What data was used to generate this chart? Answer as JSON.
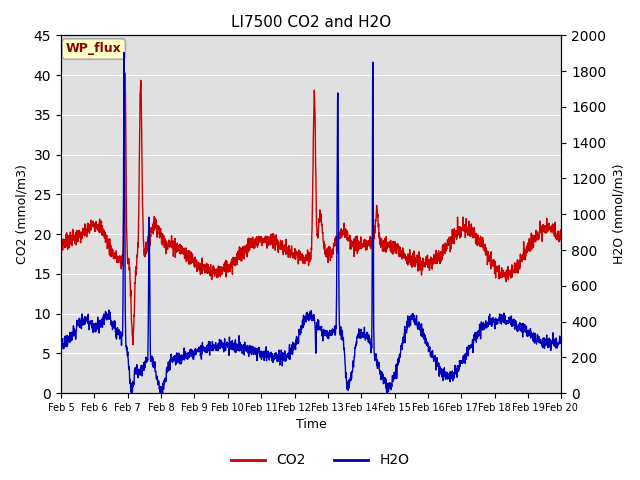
{
  "title": "LI7500 CO2 and H2O",
  "xlabel": "Time",
  "ylabel_left": "CO2 (mmol/m3)",
  "ylabel_right": "H2O (mmol/m3)",
  "ylim_left": [
    0,
    45
  ],
  "ylim_right": [
    0,
    2000
  ],
  "yticks_left": [
    0,
    5,
    10,
    15,
    20,
    25,
    30,
    35,
    40,
    45
  ],
  "yticks_right": [
    0,
    200,
    400,
    600,
    800,
    1000,
    1200,
    1400,
    1600,
    1800,
    2000
  ],
  "xtick_labels": [
    "Feb 5",
    "Feb 6",
    "Feb 7",
    "Feb 8",
    "Feb 9",
    "Feb 10",
    "Feb 11",
    "Feb 12",
    "Feb 13",
    "Feb 14",
    "Feb 15",
    "Feb 16",
    "Feb 17",
    "Feb 18",
    "Feb 19",
    "Feb 20"
  ],
  "co2_color": "#cc0000",
  "h2o_color": "#0000bb",
  "background_color": "#ffffff",
  "axes_bg_color": "#e0e0e0",
  "grid_color": "#ffffff",
  "annotation_text": "WP_flux",
  "annotation_bg": "#ffffc8",
  "annotation_border": "#aaaaaa",
  "legend_co2": "CO2",
  "legend_h2o": "H2O",
  "title_fontsize": 11,
  "lw_co2": 1.0,
  "lw_h2o": 1.0,
  "n_days": 16,
  "n_pts": 2000
}
